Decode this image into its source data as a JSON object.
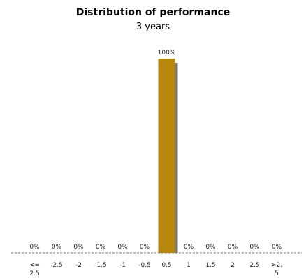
{
  "chart_data": {
    "type": "bar",
    "title": "Distribution of performance",
    "subtitle": "3 years",
    "categories": [
      [
        "<=",
        "2.5"
      ],
      [
        "-2.5"
      ],
      [
        "-2"
      ],
      [
        "-1.5"
      ],
      [
        "-1"
      ],
      [
        "-0.5"
      ],
      [
        "0.5"
      ],
      [
        "1"
      ],
      [
        "1.5"
      ],
      [
        "2"
      ],
      [
        "2.5"
      ],
      [
        ">2.",
        "5"
      ]
    ],
    "values": [
      0,
      0,
      0,
      0,
      0,
      0,
      100,
      0,
      0,
      0,
      0,
      0
    ],
    "value_labels": [
      "0%",
      "0%",
      "0%",
      "0%",
      "0%",
      "0%",
      "100%",
      "0%",
      "0%",
      "0%",
      "0%",
      "0%"
    ],
    "ylim": [
      0,
      100
    ],
    "grid": false,
    "colors": {
      "bar": "#b8860b",
      "shadow": "#7a7a7a",
      "axis": "#777777"
    }
  }
}
